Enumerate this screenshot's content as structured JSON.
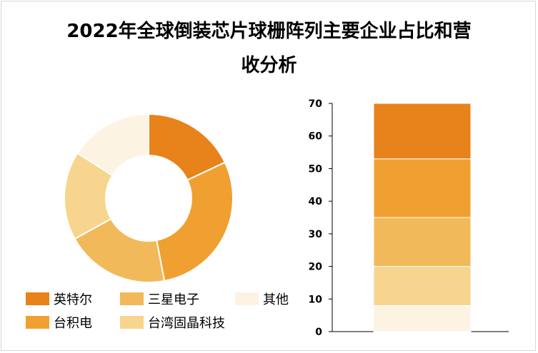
{
  "title_line1": "2022年全球倒装芯片球栅阵列主要企业占比和营",
  "title_line2": "收分析",
  "chart_data": [
    {
      "type": "pie",
      "donut": true,
      "categories": [
        "英特尔",
        "台积电",
        "三星电子",
        "台湾固晶科技",
        "其他"
      ],
      "values": [
        18,
        29,
        20,
        17,
        16
      ],
      "colors": [
        "#E8821A",
        "#F0A030",
        "#F2B95A",
        "#F7D58F",
        "#FDF3E3"
      ],
      "legend": "bottom-left"
    },
    {
      "type": "bar",
      "stacked": true,
      "categories": [
        ""
      ],
      "series": [
        {
          "name": "其他",
          "values": [
            8
          ]
        },
        {
          "name": "台湾固晶科技",
          "values": [
            12
          ]
        },
        {
          "name": "三星电子",
          "values": [
            15
          ]
        },
        {
          "name": "台积电",
          "values": [
            18
          ]
        },
        {
          "name": "英特尔",
          "values": [
            17
          ]
        }
      ],
      "colors": [
        "#FDF3E3",
        "#F7D58F",
        "#F2B95A",
        "#F0A030",
        "#E8821A"
      ],
      "ylim": [
        0,
        70
      ],
      "yticks": [
        0,
        10,
        20,
        30,
        40,
        50,
        60,
        70
      ],
      "grid": false
    }
  ]
}
